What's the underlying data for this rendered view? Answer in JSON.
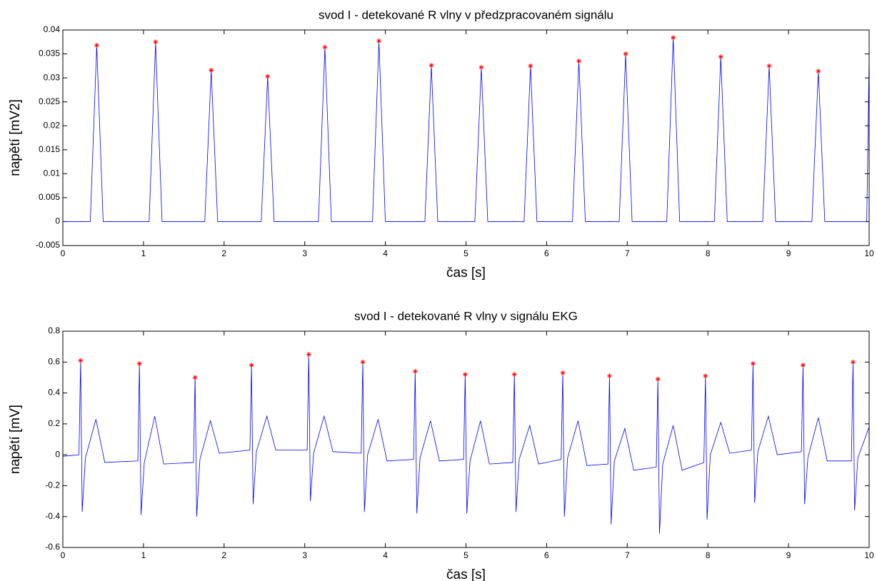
{
  "chart_data": [
    {
      "type": "line",
      "title": "svod I - detekované R vlny v předzpracovaném signálu",
      "xlabel": "čas [s]",
      "ylabel": "napětí [mV2]",
      "xlim": [
        0,
        10
      ],
      "ylim": [
        -0.005,
        0.04
      ],
      "xticks": [
        0,
        1,
        2,
        3,
        4,
        5,
        6,
        7,
        8,
        9,
        10
      ],
      "yticks": [
        -0.005,
        0,
        0.005,
        0.01,
        0.015,
        0.02,
        0.025,
        0.03,
        0.035,
        0.04
      ],
      "grid": false,
      "series": [
        {
          "type": "line",
          "color": "#0000ff",
          "x": [
            0,
            0.34,
            0.42,
            0.5,
            1.07,
            1.15,
            1.23,
            1.76,
            1.84,
            1.92,
            2.46,
            2.54,
            2.62,
            3.17,
            3.25,
            3.33,
            3.84,
            3.92,
            4.0,
            4.49,
            4.57,
            4.65,
            5.11,
            5.19,
            5.27,
            5.72,
            5.8,
            5.88,
            6.32,
            6.4,
            6.48,
            6.9,
            6.98,
            7.06,
            7.49,
            7.57,
            7.65,
            8.08,
            8.16,
            8.24,
            8.68,
            8.76,
            8.84,
            9.29,
            9.37,
            9.45,
            9.97,
            10
          ],
          "values": [
            0,
            0,
            0.0368,
            0,
            0,
            0.0375,
            0,
            0,
            0.0316,
            0,
            0,
            0.0303,
            0,
            0,
            0.0364,
            0,
            0,
            0.0377,
            0,
            0,
            0.0326,
            0,
            0,
            0.0322,
            0,
            0,
            0.0325,
            0,
            0,
            0.0335,
            0,
            0,
            0.035,
            0,
            0,
            0.0384,
            0,
            0,
            0.0344,
            0,
            0,
            0.0325,
            0,
            0,
            0.0314,
            0,
            0,
            0.034
          ]
        },
        {
          "type": "scatter",
          "color": "#ff0000",
          "x": [
            0.42,
            1.15,
            1.84,
            2.54,
            3.25,
            3.92,
            4.57,
            5.19,
            5.8,
            6.4,
            6.98,
            7.57,
            8.16,
            8.76,
            9.37
          ],
          "values": [
            0.0368,
            0.0375,
            0.0316,
            0.0303,
            0.0364,
            0.0377,
            0.0326,
            0.0322,
            0.0325,
            0.0335,
            0.035,
            0.0384,
            0.0344,
            0.0325,
            0.0314
          ]
        }
      ]
    },
    {
      "type": "line",
      "title": "svod I - detekované R vlny v signálu EKG",
      "xlabel": "čas [s]",
      "ylabel": "napětí [mV]",
      "xlim": [
        0,
        10
      ],
      "ylim": [
        -0.6,
        0.8
      ],
      "xticks": [
        0,
        1,
        2,
        3,
        4,
        5,
        6,
        7,
        8,
        9,
        10
      ],
      "yticks": [
        -0.6,
        -0.4,
        -0.2,
        0,
        0.2,
        0.4,
        0.6,
        0.8
      ],
      "grid": false,
      "series": [
        {
          "type": "line",
          "color": "#0000ff",
          "x": [
            0,
            0.2,
            0.22,
            0.24,
            0.28,
            0.41,
            0.52,
            0.93,
            0.95,
            0.97,
            1.01,
            1.14,
            1.25,
            1.62,
            1.64,
            1.66,
            1.7,
            1.83,
            1.94,
            2.32,
            2.34,
            2.36,
            2.4,
            2.53,
            2.64,
            3.03,
            3.05,
            3.07,
            3.11,
            3.24,
            3.35,
            3.7,
            3.72,
            3.74,
            3.78,
            3.91,
            4.02,
            4.35,
            4.37,
            4.39,
            4.43,
            4.56,
            4.67,
            4.97,
            4.99,
            5.01,
            5.05,
            5.18,
            5.29,
            5.58,
            5.6,
            5.62,
            5.66,
            5.79,
            5.9,
            6.18,
            6.2,
            6.22,
            6.26,
            6.39,
            6.5,
            6.76,
            6.78,
            6.8,
            6.84,
            6.97,
            7.08,
            7.36,
            7.38,
            7.4,
            7.44,
            7.57,
            7.68,
            7.95,
            7.97,
            7.99,
            8.03,
            8.16,
            8.27,
            8.54,
            8.56,
            8.58,
            8.62,
            8.75,
            8.86,
            9.16,
            9.18,
            9.2,
            9.24,
            9.37,
            9.48,
            9.78,
            9.8,
            9.82,
            9.86,
            10
          ],
          "values": [
            -0.01,
            0,
            0.61,
            -0.37,
            -0.02,
            0.23,
            -0.05,
            -0.04,
            0.59,
            -0.39,
            -0.05,
            0.25,
            -0.06,
            -0.05,
            0.5,
            -0.4,
            -0.03,
            0.22,
            0.01,
            0.03,
            0.58,
            -0.32,
            0.02,
            0.25,
            0.03,
            0.03,
            0.65,
            -0.3,
            0.01,
            0.25,
            0.02,
            0.01,
            0.6,
            -0.37,
            0,
            0.23,
            -0.04,
            -0.03,
            0.54,
            -0.38,
            -0.02,
            0.22,
            -0.04,
            -0.03,
            0.52,
            -0.38,
            -0.04,
            0.22,
            -0.06,
            -0.05,
            0.52,
            -0.37,
            -0.03,
            0.19,
            -0.06,
            -0.03,
            0.53,
            -0.4,
            -0.02,
            0.22,
            -0.07,
            -0.06,
            0.51,
            -0.45,
            -0.04,
            0.17,
            -0.1,
            -0.08,
            0.49,
            -0.51,
            -0.06,
            0.19,
            -0.1,
            -0.05,
            0.51,
            -0.42,
            0,
            0.21,
            0.01,
            0.03,
            0.59,
            -0.31,
            0.02,
            0.25,
            0,
            0.02,
            0.58,
            -0.32,
            -0.02,
            0.24,
            -0.04,
            -0.04,
            0.6,
            -0.36,
            -0.02,
            0.18
          ]
        },
        {
          "type": "scatter",
          "color": "#ff0000",
          "x": [
            0.22,
            0.95,
            1.64,
            2.34,
            3.05,
            3.72,
            4.37,
            4.99,
            5.6,
            6.2,
            6.78,
            7.38,
            7.97,
            8.56,
            9.18,
            9.8
          ],
          "values": [
            0.61,
            0.59,
            0.5,
            0.58,
            0.65,
            0.6,
            0.54,
            0.52,
            0.52,
            0.53,
            0.51,
            0.49,
            0.51,
            0.59,
            0.58,
            0.6
          ]
        }
      ]
    }
  ]
}
